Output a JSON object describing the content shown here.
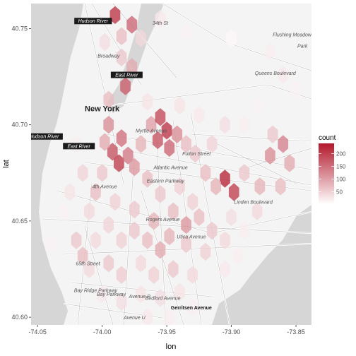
{
  "chart_data": {
    "type": "heatmap",
    "geometry": "hexbin",
    "title": "",
    "xlabel": "lon",
    "ylabel": "lat",
    "xlim": [
      -74.055,
      -73.838
    ],
    "ylim": [
      40.596,
      40.763
    ],
    "x_ticks": [
      -74.05,
      -74.0,
      -73.95,
      -73.9,
      -73.85
    ],
    "x_tick_labels": [
      "-74.05",
      "-74.00",
      "-73.95",
      "-73.90",
      "-73.85"
    ],
    "y_ticks": [
      40.6,
      40.65,
      40.7,
      40.75
    ],
    "y_tick_labels": [
      "40.60",
      "40.65",
      "40.70",
      "40.75"
    ],
    "hex_size": 0.0075,
    "basemap_labels": [
      {
        "text": "Hudson River",
        "lon": -74.007,
        "lat": 40.753,
        "style": "dark"
      },
      {
        "text": "Hudson River",
        "lon": -74.045,
        "lat": 40.693,
        "style": "dark"
      },
      {
        "text": "East River",
        "lon": -74.018,
        "lat": 40.688,
        "style": "dark"
      },
      {
        "text": "East River",
        "lon": -73.981,
        "lat": 40.725,
        "style": "dark"
      },
      {
        "text": "New York",
        "lon": -74.0,
        "lat": 40.707,
        "style": "city"
      },
      {
        "text": "Broadway",
        "lon": -73.995,
        "lat": 40.735,
        "style": "road"
      },
      {
        "text": "34th St",
        "lon": -73.955,
        "lat": 40.752,
        "style": "road"
      },
      {
        "text": "Flushing Meadow",
        "lon": -73.853,
        "lat": 40.746,
        "style": "road"
      },
      {
        "text": "Park",
        "lon": -73.845,
        "lat": 40.74,
        "style": "road"
      },
      {
        "text": "Queens Boulevard",
        "lon": -73.866,
        "lat": 40.726,
        "style": "road"
      },
      {
        "text": "Myrtle Avenue",
        "lon": -73.962,
        "lat": 40.696,
        "style": "road"
      },
      {
        "text": "Fulton Street",
        "lon": -73.927,
        "lat": 40.684,
        "style": "road"
      },
      {
        "text": "Atlantic Avenue",
        "lon": -73.947,
        "lat": 40.677,
        "style": "road"
      },
      {
        "text": "Eastern Parkway",
        "lon": -73.951,
        "lat": 40.67,
        "style": "road"
      },
      {
        "text": "Linden Boulevard",
        "lon": -73.883,
        "lat": 40.659,
        "style": "road"
      },
      {
        "text": "4th Avenue",
        "lon": -73.998,
        "lat": 40.667,
        "style": "road"
      },
      {
        "text": "Rogers Avenue",
        "lon": -73.953,
        "lat": 40.65,
        "style": "road"
      },
      {
        "text": "Utica Avenue",
        "lon": -73.931,
        "lat": 40.641,
        "style": "road"
      },
      {
        "text": "Bay Ridge Parkway",
        "lon": -74.005,
        "lat": 40.613,
        "style": "road"
      },
      {
        "text": "Avenue P",
        "lon": -73.971,
        "lat": 40.61,
        "style": "road"
      },
      {
        "text": "Avenue U",
        "lon": -73.975,
        "lat": 40.599,
        "style": "road"
      },
      {
        "text": "Bedford Avenue",
        "lon": -73.953,
        "lat": 40.609,
        "style": "road"
      },
      {
        "text": "Gerritsen Avenue",
        "lon": -73.931,
        "lat": 40.604,
        "style": "bold"
      },
      {
        "text": "65th Street",
        "lon": -74.011,
        "lat": 40.627,
        "style": "road"
      },
      {
        "text": "Bay Parkway",
        "lon": -73.993,
        "lat": 40.611,
        "style": "road"
      }
    ],
    "legend": {
      "title": "count",
      "breaks": [
        50,
        100,
        150,
        200
      ],
      "labels": [
        "50",
        "100",
        "150",
        "200"
      ],
      "range": [
        1,
        240
      ],
      "placement": "right",
      "colors": [
        "#ffffff",
        "#b2182b"
      ]
    },
    "points": [
      {
        "lon": -73.99,
        "lat": 40.757,
        "count": 210
      },
      {
        "lon": -73.977,
        "lat": 40.752,
        "count": 160
      },
      {
        "lon": -73.985,
        "lat": 40.746,
        "count": 70
      },
      {
        "lon": -73.97,
        "lat": 40.745,
        "count": 40
      },
      {
        "lon": -73.998,
        "lat": 40.743,
        "count": 35
      },
      {
        "lon": -73.985,
        "lat": 40.735,
        "count": 60
      },
      {
        "lon": -73.977,
        "lat": 40.73,
        "count": 90
      },
      {
        "lon": -73.982,
        "lat": 40.72,
        "count": 170
      },
      {
        "lon": -73.995,
        "lat": 40.713,
        "count": 70
      },
      {
        "lon": -73.965,
        "lat": 40.712,
        "count": 30
      },
      {
        "lon": -73.955,
        "lat": 40.755,
        "count": 25
      },
      {
        "lon": -73.935,
        "lat": 40.748,
        "count": 15
      },
      {
        "lon": -73.9,
        "lat": 40.745,
        "count": 10
      },
      {
        "lon": -73.87,
        "lat": 40.738,
        "count": 20
      },
      {
        "lon": -73.86,
        "lat": 40.726,
        "count": 25
      },
      {
        "lon": -73.85,
        "lat": 40.718,
        "count": 15
      },
      {
        "lon": -73.995,
        "lat": 40.7,
        "count": 120
      },
      {
        "lon": -73.985,
        "lat": 40.693,
        "count": 150
      },
      {
        "lon": -73.992,
        "lat": 40.686,
        "count": 180
      },
      {
        "lon": -73.987,
        "lat": 40.68,
        "count": 200
      },
      {
        "lon": -73.98,
        "lat": 40.684,
        "count": 140
      },
      {
        "lon": -73.975,
        "lat": 40.678,
        "count": 110
      },
      {
        "lon": -73.998,
        "lat": 40.691,
        "count": 90
      },
      {
        "lon": -73.97,
        "lat": 40.69,
        "count": 80
      },
      {
        "lon": -73.962,
        "lat": 40.7,
        "count": 100
      },
      {
        "lon": -73.955,
        "lat": 40.704,
        "count": 190
      },
      {
        "lon": -73.95,
        "lat": 40.697,
        "count": 210
      },
      {
        "lon": -73.957,
        "lat": 40.692,
        "count": 180
      },
      {
        "lon": -73.948,
        "lat": 40.688,
        "count": 160
      },
      {
        "lon": -73.942,
        "lat": 40.695,
        "count": 120
      },
      {
        "lon": -73.935,
        "lat": 40.69,
        "count": 70
      },
      {
        "lon": -73.928,
        "lat": 40.685,
        "count": 60
      },
      {
        "lon": -73.915,
        "lat": 40.69,
        "count": 45
      },
      {
        "lon": -73.905,
        "lat": 40.7,
        "count": 35
      },
      {
        "lon": -73.905,
        "lat": 40.672,
        "count": 230
      },
      {
        "lon": -73.898,
        "lat": 40.665,
        "count": 200
      },
      {
        "lon": -73.912,
        "lat": 40.668,
        "count": 80
      },
      {
        "lon": -73.92,
        "lat": 40.675,
        "count": 70
      },
      {
        "lon": -73.89,
        "lat": 40.675,
        "count": 60
      },
      {
        "lon": -73.878,
        "lat": 40.668,
        "count": 80
      },
      {
        "lon": -73.87,
        "lat": 40.684,
        "count": 120
      },
      {
        "lon": -73.86,
        "lat": 40.69,
        "count": 130
      },
      {
        "lon": -73.855,
        "lat": 40.68,
        "count": 90
      },
      {
        "lon": -73.868,
        "lat": 40.695,
        "count": 60
      },
      {
        "lon": -73.862,
        "lat": 40.668,
        "count": 70
      },
      {
        "lon": -73.88,
        "lat": 40.655,
        "count": 40
      },
      {
        "lon": -73.965,
        "lat": 40.672,
        "count": 70
      },
      {
        "lon": -73.955,
        "lat": 40.664,
        "count": 60
      },
      {
        "lon": -73.94,
        "lat": 40.668,
        "count": 50
      },
      {
        "lon": -73.93,
        "lat": 40.66,
        "count": 50
      },
      {
        "lon": -73.945,
        "lat": 40.655,
        "count": 70
      },
      {
        "lon": -73.96,
        "lat": 40.65,
        "count": 80
      },
      {
        "lon": -73.975,
        "lat": 40.656,
        "count": 60
      },
      {
        "lon": -73.99,
        "lat": 40.66,
        "count": 50
      },
      {
        "lon": -74.005,
        "lat": 40.665,
        "count": 70
      },
      {
        "lon": -74.01,
        "lat": 40.655,
        "count": 40
      },
      {
        "lon": -74.0,
        "lat": 40.675,
        "count": 60
      },
      {
        "lon": -73.935,
        "lat": 40.648,
        "count": 110
      },
      {
        "lon": -73.925,
        "lat": 40.652,
        "count": 70
      },
      {
        "lon": -73.915,
        "lat": 40.645,
        "count": 60
      },
      {
        "lon": -73.905,
        "lat": 40.64,
        "count": 40
      },
      {
        "lon": -73.92,
        "lat": 40.634,
        "count": 50
      },
      {
        "lon": -73.935,
        "lat": 40.638,
        "count": 60
      },
      {
        "lon": -73.948,
        "lat": 40.642,
        "count": 80
      },
      {
        "lon": -73.955,
        "lat": 40.635,
        "count": 90
      },
      {
        "lon": -73.965,
        "lat": 40.64,
        "count": 70
      },
      {
        "lon": -73.975,
        "lat": 40.645,
        "count": 60
      },
      {
        "lon": -73.985,
        "lat": 40.64,
        "count": 50
      },
      {
        "lon": -73.995,
        "lat": 40.648,
        "count": 45
      },
      {
        "lon": -74.005,
        "lat": 40.64,
        "count": 40
      },
      {
        "lon": -74.015,
        "lat": 40.632,
        "count": 70
      },
      {
        "lon": -74.02,
        "lat": 40.64,
        "count": 60
      },
      {
        "lon": -74.01,
        "lat": 40.625,
        "count": 40
      },
      {
        "lon": -73.995,
        "lat": 40.628,
        "count": 60
      },
      {
        "lon": -73.985,
        "lat": 40.622,
        "count": 55
      },
      {
        "lon": -73.97,
        "lat": 40.628,
        "count": 40
      },
      {
        "lon": -73.96,
        "lat": 40.622,
        "count": 50
      },
      {
        "lon": -73.945,
        "lat": 40.625,
        "count": 60
      },
      {
        "lon": -73.93,
        "lat": 40.622,
        "count": 40
      },
      {
        "lon": -73.94,
        "lat": 40.613,
        "count": 30
      },
      {
        "lon": -73.955,
        "lat": 40.61,
        "count": 35
      },
      {
        "lon": -73.97,
        "lat": 40.612,
        "count": 30
      },
      {
        "lon": -73.985,
        "lat": 40.608,
        "count": 35
      },
      {
        "lon": -74.0,
        "lat": 40.612,
        "count": 25
      },
      {
        "lon": -73.965,
        "lat": 40.6,
        "count": 25
      },
      {
        "lon": -73.948,
        "lat": 40.6,
        "count": 20
      },
      {
        "lon": -73.93,
        "lat": 40.605,
        "count": 20
      },
      {
        "lon": -73.905,
        "lat": 40.625,
        "count": 25
      },
      {
        "lon": -73.895,
        "lat": 40.632,
        "count": 20
      },
      {
        "lon": -74.03,
        "lat": 40.655,
        "count": 15
      },
      {
        "lon": -74.04,
        "lat": 40.638,
        "count": 15
      },
      {
        "lon": -74.025,
        "lat": 40.665,
        "count": 30
      },
      {
        "lon": -74.015,
        "lat": 40.675,
        "count": 45
      },
      {
        "lon": -74.02,
        "lat": 40.69,
        "count": 20
      },
      {
        "lon": -73.94,
        "lat": 40.71,
        "count": 30
      },
      {
        "lon": -73.925,
        "lat": 40.705,
        "count": 25
      },
      {
        "lon": -73.89,
        "lat": 40.7,
        "count": 20
      },
      {
        "lon": -73.88,
        "lat": 40.71,
        "count": 15
      },
      {
        "lon": -73.9,
        "lat": 40.652,
        "count": 35
      },
      {
        "lon": -73.89,
        "lat": 40.645,
        "count": 20
      }
    ]
  }
}
